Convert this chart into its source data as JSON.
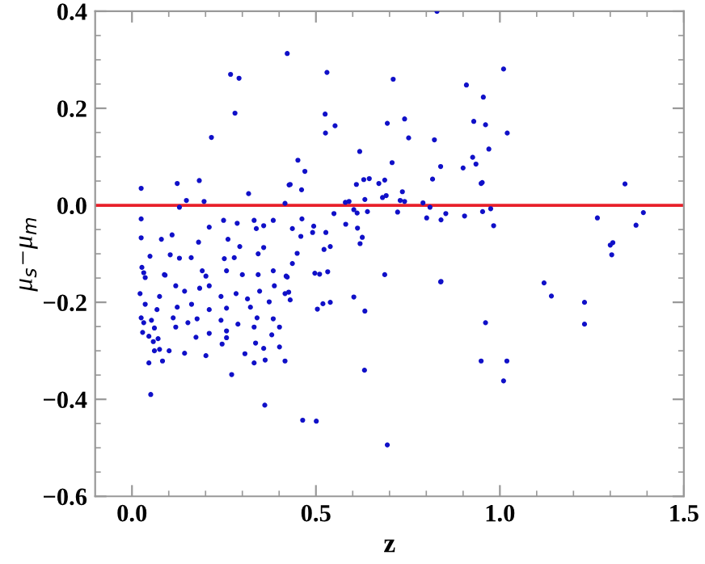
{
  "chart_data": {
    "type": "scatter",
    "xlabel": "z",
    "ylabel": "μ$_{s}$−μ$_{m}$",
    "xlim": [
      -0.1,
      1.5
    ],
    "ylim": [
      -0.6,
      0.4
    ],
    "xticks": [
      {
        "value": 0.0,
        "label": "0.0"
      },
      {
        "value": 0.1,
        "label": null
      },
      {
        "value": 0.2,
        "label": null
      },
      {
        "value": 0.3,
        "label": null
      },
      {
        "value": 0.4,
        "label": null
      },
      {
        "value": 0.5,
        "label": "0.5"
      },
      {
        "value": 0.6,
        "label": null
      },
      {
        "value": 0.7,
        "label": null
      },
      {
        "value": 0.8,
        "label": null
      },
      {
        "value": 0.9,
        "label": null
      },
      {
        "value": 1.0,
        "label": "1.0"
      },
      {
        "value": 1.1,
        "label": null
      },
      {
        "value": 1.2,
        "label": null
      },
      {
        "value": 1.3,
        "label": null
      },
      {
        "value": 1.4,
        "label": null
      },
      {
        "value": 1.5,
        "label": "1.5"
      }
    ],
    "yticks": [
      {
        "value": -0.6,
        "label": "−0.6"
      },
      {
        "value": -0.55,
        "label": null
      },
      {
        "value": -0.5,
        "label": null
      },
      {
        "value": -0.45,
        "label": null
      },
      {
        "value": -0.4,
        "label": "−0.4"
      },
      {
        "value": -0.35,
        "label": null
      },
      {
        "value": -0.3,
        "label": null
      },
      {
        "value": -0.25,
        "label": null
      },
      {
        "value": -0.2,
        "label": "−0.2"
      },
      {
        "value": -0.15,
        "label": null
      },
      {
        "value": -0.1,
        "label": null
      },
      {
        "value": -0.05,
        "label": null
      },
      {
        "value": 0.0,
        "label": "0.0"
      },
      {
        "value": 0.05,
        "label": null
      },
      {
        "value": 0.1,
        "label": null
      },
      {
        "value": 0.15,
        "label": null
      },
      {
        "value": 0.2,
        "label": "0.2"
      },
      {
        "value": 0.25,
        "label": null
      },
      {
        "value": 0.3,
        "label": null
      },
      {
        "value": 0.35,
        "label": null
      },
      {
        "value": 0.4,
        "label": "0.4"
      }
    ],
    "grid": false,
    "marker": "circle",
    "ref_lines": [
      {
        "axis": "y",
        "value": 0.0,
        "color": "#e8202a",
        "line_style": "solid"
      }
    ],
    "series": [
      {
        "color": "#1010c8",
        "x": [
          0.025,
          0.123,
          0.183,
          0.129,
          0.148,
          0.196,
          0.216,
          0.268,
          0.291,
          0.28,
          0.317,
          0.422,
          0.427,
          0.416,
          0.025,
          0.025,
          0.08,
          0.109,
          0.049,
          0.21,
          0.249,
          0.261,
          0.286,
          0.293,
          0.332,
          0.338,
          0.358,
          0.384,
          0.358,
          0.343,
          0.181,
          0.129,
          0.161,
          0.104,
          0.251,
          0.278,
          0.384,
          0.027,
          0.032,
          0.088,
          0.191,
          0.201,
          0.257,
          0.3,
          0.343,
          0.419,
          0.036,
          0.09,
          0.022,
          0.036,
          0.075,
          0.119,
          0.143,
          0.184,
          0.21,
          0.242,
          0.283,
          0.314,
          0.347,
          0.373,
          0.416,
          0.068,
          0.123,
          0.162,
          0.21,
          0.257,
          0.322,
          0.025,
          0.053,
          0.112,
          0.152,
          0.177,
          0.242,
          0.288,
          0.34,
          0.384,
          0.032,
          0.061,
          0.119,
          0.21,
          0.257,
          0.332,
          0.401,
          0.029,
          0.046,
          0.071,
          0.174,
          0.257,
          0.38,
          0.058,
          0.336,
          0.245,
          0.075,
          0.061,
          0.101,
          0.143,
          0.201,
          0.307,
          0.358,
          0.401,
          0.046,
          0.083,
          0.332,
          0.362,
          0.416,
          0.271,
          0.051,
          0.361,
          0.53,
          0.71,
          0.829,
          0.909,
          0.955,
          0.525,
          0.552,
          0.526,
          0.694,
          0.741,
          0.752,
          0.822,
          0.929,
          0.961,
          0.97,
          0.451,
          0.47,
          0.619,
          0.707,
          0.839,
          0.9,
          0.926,
          0.935,
          0.43,
          0.461,
          0.61,
          0.63,
          0.645,
          0.671,
          0.687,
          0.735,
          0.817,
          0.949,
          0.681,
          0.691,
          0.633,
          0.58,
          0.59,
          0.729,
          0.741,
          0.791,
          0.603,
          0.612,
          0.64,
          0.549,
          0.722,
          0.81,
          0.801,
          0.84,
          0.853,
          0.904,
          0.953,
          0.975,
          0.983,
          0.462,
          0.436,
          0.494,
          0.491,
          0.459,
          0.527,
          0.581,
          0.613,
          0.626,
          0.62,
          0.539,
          0.522,
          0.449,
          0.436,
          0.422,
          0.497,
          0.51,
          0.532,
          0.687,
          0.839,
          0.387,
          0.426,
          0.43,
          0.603,
          0.504,
          0.519,
          0.539,
          0.633,
          0.84,
          0.632,
          0.961,
          0.949,
          0.464,
          0.501,
          0.694,
          1.01,
          1.02,
          0.952,
          1.34,
          1.265,
          1.37,
          1.39,
          1.3,
          1.307,
          1.304,
          1.12,
          1.14,
          1.23,
          1.23,
          1.019,
          1.01
        ],
        "values": [
          0.035,
          0.045,
          0.051,
          -0.004,
          0.01,
          0.008,
          0.14,
          0.27,
          0.262,
          0.19,
          0.024,
          0.313,
          0.042,
          0.004,
          -0.028,
          -0.067,
          -0.07,
          -0.061,
          -0.105,
          -0.045,
          -0.031,
          -0.07,
          -0.037,
          -0.085,
          -0.031,
          -0.048,
          -0.042,
          -0.031,
          -0.087,
          -0.1,
          -0.076,
          -0.109,
          -0.108,
          -0.102,
          -0.11,
          -0.108,
          -0.135,
          -0.128,
          -0.139,
          -0.143,
          -0.135,
          -0.146,
          -0.135,
          -0.143,
          -0.143,
          -0.146,
          -0.149,
          -0.144,
          -0.182,
          -0.204,
          -0.188,
          -0.166,
          -0.177,
          -0.171,
          -0.166,
          -0.188,
          -0.182,
          -0.193,
          -0.177,
          -0.199,
          -0.182,
          -0.215,
          -0.21,
          -0.204,
          -0.215,
          -0.212,
          -0.21,
          -0.232,
          -0.237,
          -0.232,
          -0.242,
          -0.234,
          -0.237,
          -0.245,
          -0.232,
          -0.234,
          -0.242,
          -0.253,
          -0.251,
          -0.264,
          -0.259,
          -0.251,
          -0.251,
          -0.262,
          -0.27,
          -0.275,
          -0.272,
          -0.273,
          -0.267,
          -0.281,
          -0.284,
          -0.286,
          -0.297,
          -0.3,
          -0.3,
          -0.305,
          -0.31,
          -0.306,
          -0.295,
          -0.292,
          -0.325,
          -0.321,
          -0.325,
          -0.319,
          -0.321,
          -0.349,
          -0.39,
          -0.412,
          0.274,
          0.26,
          0.4,
          0.248,
          0.223,
          0.188,
          0.164,
          0.149,
          0.169,
          0.178,
          0.139,
          0.135,
          0.173,
          0.166,
          0.116,
          0.093,
          0.07,
          0.111,
          0.088,
          0.08,
          0.077,
          0.099,
          0.085,
          0.043,
          0.032,
          0.043,
          0.053,
          0.055,
          0.045,
          0.052,
          0.028,
          0.054,
          0.045,
          0.016,
          0.02,
          0.012,
          0.006,
          0.008,
          0.01,
          0.008,
          0.005,
          -0.009,
          -0.016,
          -0.013,
          -0.017,
          -0.014,
          -0.004,
          -0.026,
          -0.03,
          -0.017,
          -0.022,
          -0.013,
          -0.007,
          -0.042,
          -0.028,
          -0.048,
          -0.043,
          -0.056,
          -0.064,
          -0.056,
          -0.039,
          -0.047,
          -0.066,
          -0.079,
          -0.085,
          -0.091,
          -0.099,
          -0.12,
          -0.148,
          -0.14,
          -0.142,
          -0.137,
          -0.143,
          -0.158,
          -0.166,
          -0.179,
          -0.195,
          -0.189,
          -0.214,
          -0.203,
          -0.2,
          -0.218,
          -0.157,
          -0.34,
          -0.242,
          -0.321,
          -0.443,
          -0.445,
          -0.494,
          0.281,
          0.149,
          0.047,
          0.044,
          -0.026,
          -0.041,
          -0.015,
          -0.082,
          -0.077,
          -0.102,
          -0.16,
          -0.187,
          -0.2,
          -0.245,
          -0.321,
          -0.362
        ]
      }
    ]
  }
}
